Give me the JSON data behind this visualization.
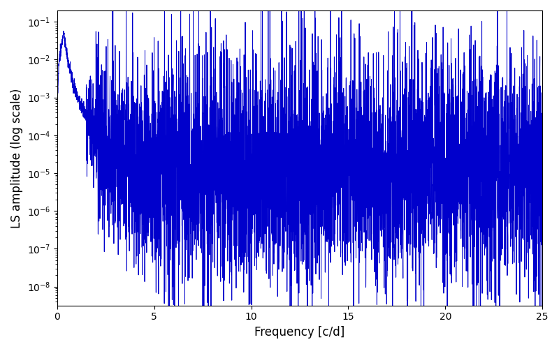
{
  "title": "",
  "xlabel": "Frequency [c/d]",
  "ylabel": "LS amplitude (log scale)",
  "line_color": "#0000cc",
  "line_width": 0.7,
  "xlim": [
    0,
    25
  ],
  "ylim_log_min": -8.5,
  "ylim_log_max": -0.7,
  "freq_max": 25,
  "n_points": 5000,
  "background_color": "#ffffff",
  "figsize": [
    8.0,
    5.0
  ],
  "dpi": 100
}
